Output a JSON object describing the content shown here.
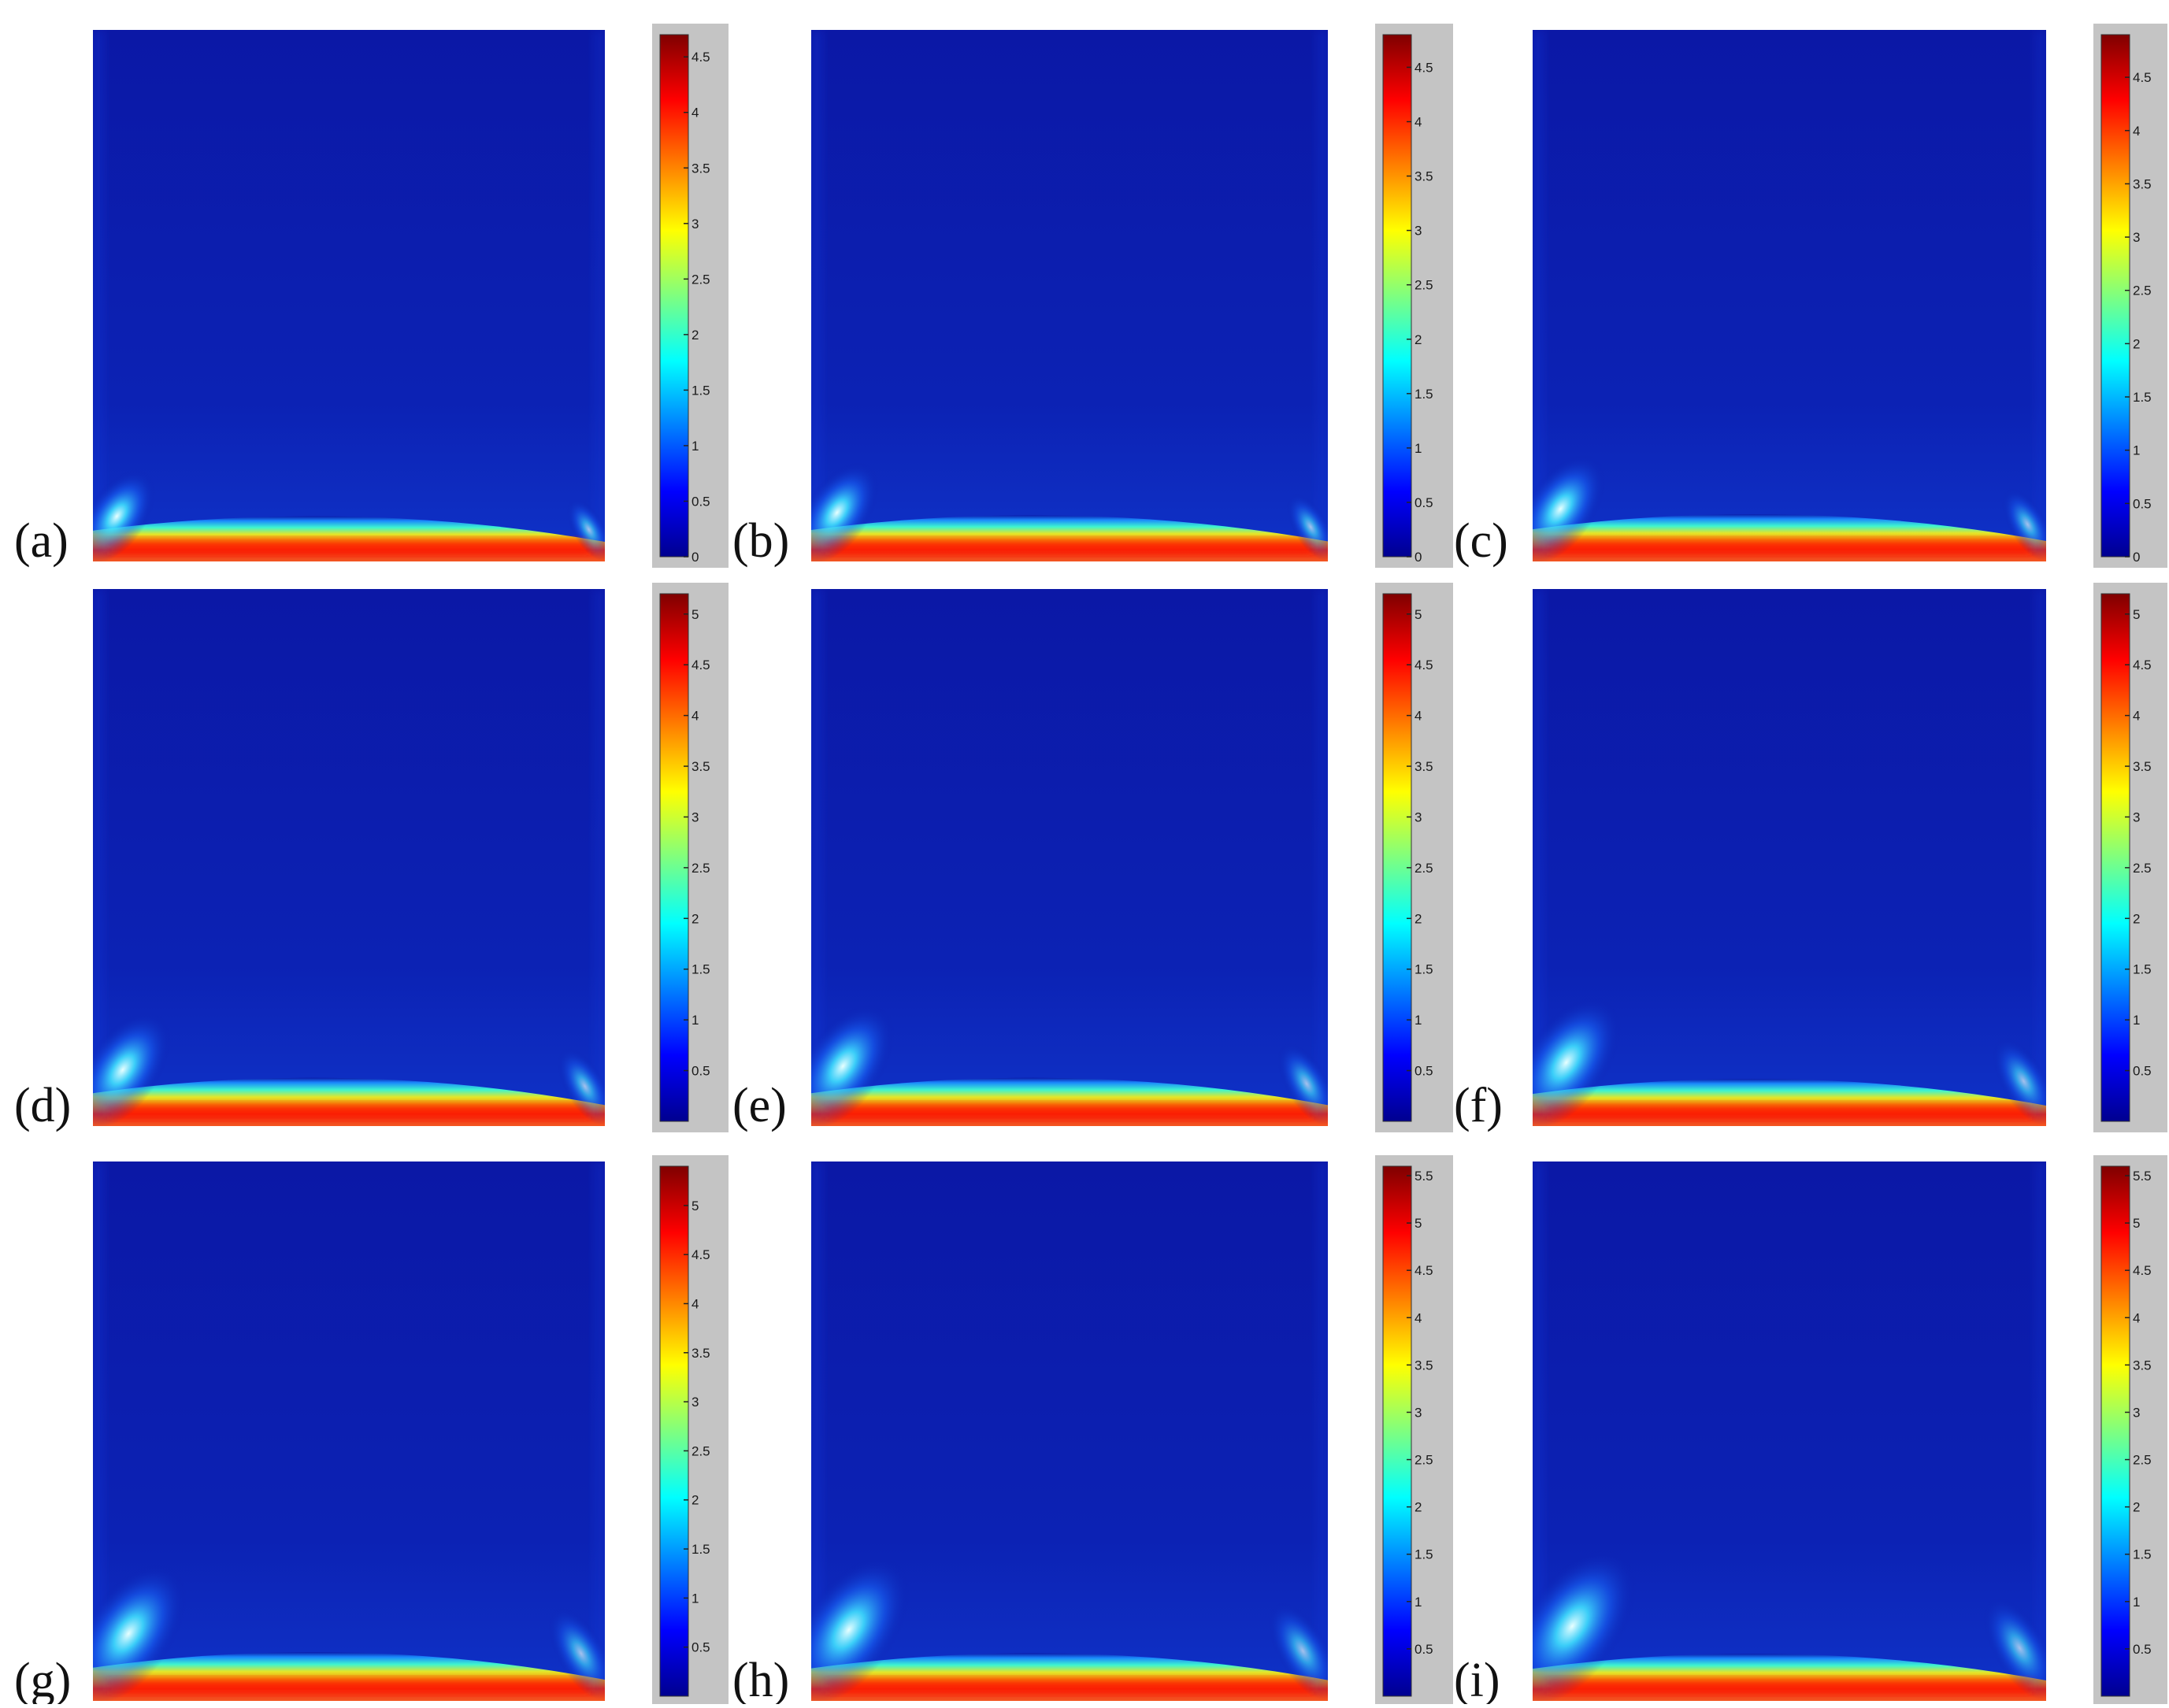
{
  "colormap": [
    "#00008f",
    "#0000ff",
    "#007fff",
    "#00ffff",
    "#7fff7f",
    "#ffff00",
    "#ff7f00",
    "#ff0000",
    "#7f0000"
  ],
  "colors": {
    "background": "#ffffff",
    "colorbar_frame": "#c4c4c4",
    "field_base": "#0a1aa8"
  },
  "chart_data": [
    {
      "type": "heatmap",
      "panel_label": "(a)",
      "colorbar_ticks": [
        "0",
        "0.5",
        "1",
        "1.5",
        "2",
        "2.5",
        "3",
        "3.5",
        "4",
        "4.5"
      ],
      "color_range": [
        0,
        4.7
      ],
      "hot_band_strength": 0.78,
      "corner_jet_strength": 0.25
    },
    {
      "type": "heatmap",
      "panel_label": "(b)",
      "colorbar_ticks": [
        "0",
        "0.5",
        "1",
        "1.5",
        "2",
        "2.5",
        "3",
        "3.5",
        "4",
        "4.5"
      ],
      "color_range": [
        0,
        4.8
      ],
      "hot_band_strength": 0.82,
      "corner_jet_strength": 0.3
    },
    {
      "type": "heatmap",
      "panel_label": "(c)",
      "colorbar_ticks": [
        "0",
        "0.5",
        "1",
        "1.5",
        "2",
        "2.5",
        "3",
        "3.5",
        "4",
        "4.5"
      ],
      "color_range": [
        0,
        4.9
      ],
      "hot_band_strength": 0.86,
      "corner_jet_strength": 0.35
    },
    {
      "type": "heatmap",
      "panel_label": "(d)",
      "colorbar_ticks": [
        "0.5",
        "1",
        "1.5",
        "2",
        "2.5",
        "3",
        "3.5",
        "4",
        "4.5",
        "5"
      ],
      "color_range": [
        0,
        5.2
      ],
      "hot_band_strength": 0.9,
      "corner_jet_strength": 0.4
    },
    {
      "type": "heatmap",
      "panel_label": "(e)",
      "colorbar_ticks": [
        "0.5",
        "1",
        "1.5",
        "2",
        "2.5",
        "3",
        "3.5",
        "4",
        "4.5",
        "5"
      ],
      "color_range": [
        0,
        5.2
      ],
      "hot_band_strength": 0.9,
      "corner_jet_strength": 0.45
    },
    {
      "type": "heatmap",
      "panel_label": "(f)",
      "colorbar_ticks": [
        "0.5",
        "1",
        "1.5",
        "2",
        "2.5",
        "3",
        "3.5",
        "4",
        "4.5",
        "5"
      ],
      "color_range": [
        0,
        5.2
      ],
      "hot_band_strength": 0.86,
      "corner_jet_strength": 0.5
    },
    {
      "type": "heatmap",
      "panel_label": "(g)",
      "colorbar_ticks": [
        "0.5",
        "1",
        "1.5",
        "2",
        "2.5",
        "3",
        "3.5",
        "4",
        "4.5",
        "5"
      ],
      "color_range": [
        0,
        5.4
      ],
      "hot_band_strength": 0.92,
      "corner_jet_strength": 0.55
    },
    {
      "type": "heatmap",
      "panel_label": "(h)",
      "colorbar_ticks": [
        "0.5",
        "1",
        "1.5",
        "2",
        "2.5",
        "3",
        "3.5",
        "4",
        "4.5",
        "5",
        "5.5"
      ],
      "color_range": [
        0,
        5.6
      ],
      "hot_band_strength": 0.88,
      "corner_jet_strength": 0.6
    },
    {
      "type": "heatmap",
      "panel_label": "(i)",
      "colorbar_ticks": [
        "0.5",
        "1",
        "1.5",
        "2",
        "2.5",
        "3",
        "3.5",
        "4",
        "4.5",
        "5",
        "5.5"
      ],
      "color_range": [
        0,
        5.6
      ],
      "hot_band_strength": 0.86,
      "corner_jet_strength": 0.65
    }
  ]
}
